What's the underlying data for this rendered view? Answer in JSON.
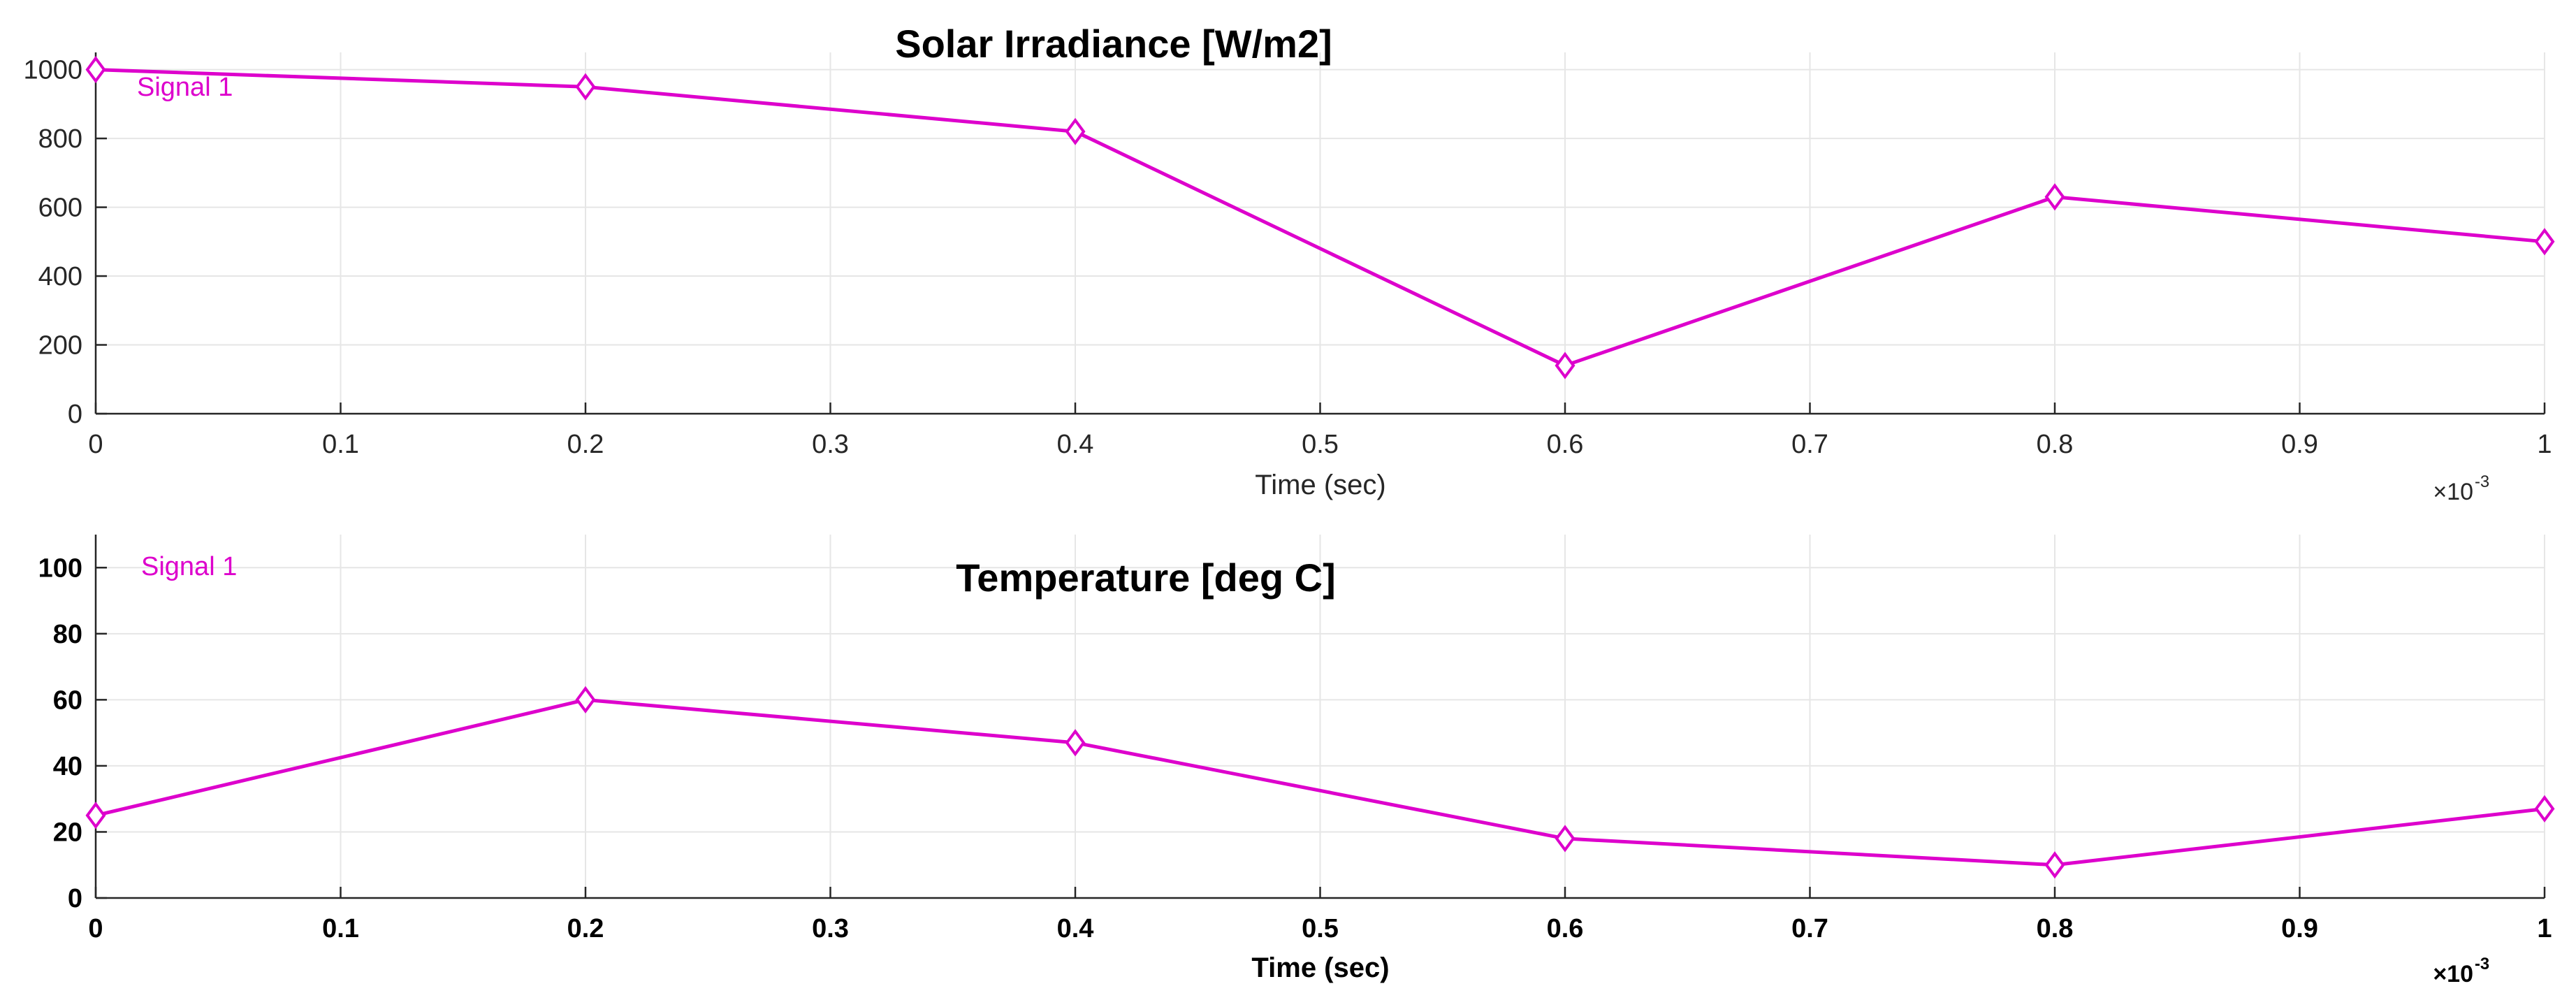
{
  "colors": {
    "signal": "#dd00cc",
    "grid": "#e6e6e6",
    "axis": "#262626"
  },
  "marker_icon": "diamond-icon",
  "chart_data": [
    {
      "type": "line",
      "title": "Solar Irradiance [W/m2]",
      "xlabel": "Time (sec)",
      "x_exponent_base": "×10",
      "x_exponent": "-3",
      "legend": "Signal 1",
      "xlim": [
        0,
        1
      ],
      "ylim": [
        0,
        1050
      ],
      "xticks": [
        0,
        0.1,
        0.2,
        0.3,
        0.4,
        0.5,
        0.6,
        0.7,
        0.8,
        0.9,
        1
      ],
      "xtick_labels": [
        "0",
        "0.1",
        "0.2",
        "0.3",
        "0.4",
        "0.5",
        "0.6",
        "0.7",
        "0.8",
        "0.9",
        "1"
      ],
      "yticks": [
        0,
        200,
        400,
        600,
        800,
        1000
      ],
      "ytick_labels": [
        "0",
        "200",
        "400",
        "600",
        "800",
        "1000"
      ],
      "series": [
        {
          "name": "Signal 1",
          "x": [
            0,
            0.2,
            0.4,
            0.6,
            0.8,
            1.0
          ],
          "values": [
            1000,
            950,
            820,
            140,
            630,
            500
          ]
        }
      ]
    },
    {
      "type": "line",
      "title": "Temperature [deg C]",
      "xlabel": "Time (sec)",
      "x_exponent_base": "×10",
      "x_exponent": "-3",
      "legend": "Signal 1",
      "xlim": [
        0,
        1
      ],
      "ylim": [
        0,
        110
      ],
      "xticks": [
        0,
        0.1,
        0.2,
        0.3,
        0.4,
        0.5,
        0.6,
        0.7,
        0.8,
        0.9,
        1
      ],
      "xtick_labels": [
        "0",
        "0.1",
        "0.2",
        "0.3",
        "0.4",
        "0.5",
        "0.6",
        "0.7",
        "0.8",
        "0.9",
        "1"
      ],
      "yticks": [
        0,
        20,
        40,
        60,
        80,
        100
      ],
      "ytick_labels": [
        "0",
        "20",
        "40",
        "60",
        "80",
        "100"
      ],
      "series": [
        {
          "name": "Signal 1",
          "x": [
            0,
            0.2,
            0.4,
            0.6,
            0.8,
            1.0
          ],
          "values": [
            25,
            60,
            47,
            18,
            10,
            27
          ]
        }
      ]
    }
  ]
}
